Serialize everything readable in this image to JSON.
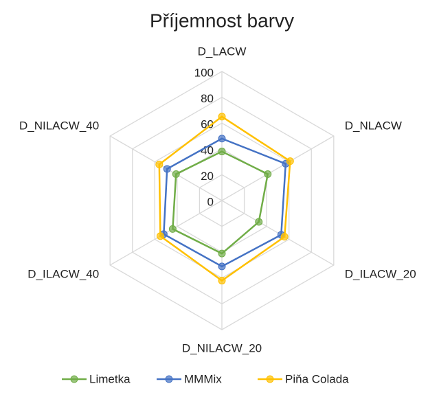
{
  "chart_data": {
    "type": "radar",
    "title": "Příjemnost barvy",
    "categories": [
      "D_LACW",
      "D_NLACW",
      "D_ILACW_20",
      "D_NILACW_20",
      "D_ILACW_40",
      "D_NILACW_40"
    ],
    "series": [
      {
        "name": "Limetka",
        "color": "#70ad47",
        "values": [
          38,
          41,
          33,
          41,
          44,
          41
        ]
      },
      {
        "name": "MMMix",
        "color": "#4472c4",
        "values": [
          48,
          57,
          53,
          51,
          52,
          49
        ]
      },
      {
        "name": "Piňa Colada",
        "color": "#ffc000",
        "values": [
          65,
          61,
          56,
          62,
          55,
          56
        ]
      }
    ],
    "ylim": [
      0,
      100
    ],
    "yticks": [
      0,
      20,
      40,
      60,
      80,
      100
    ],
    "grid": true,
    "legend": "bottom"
  }
}
